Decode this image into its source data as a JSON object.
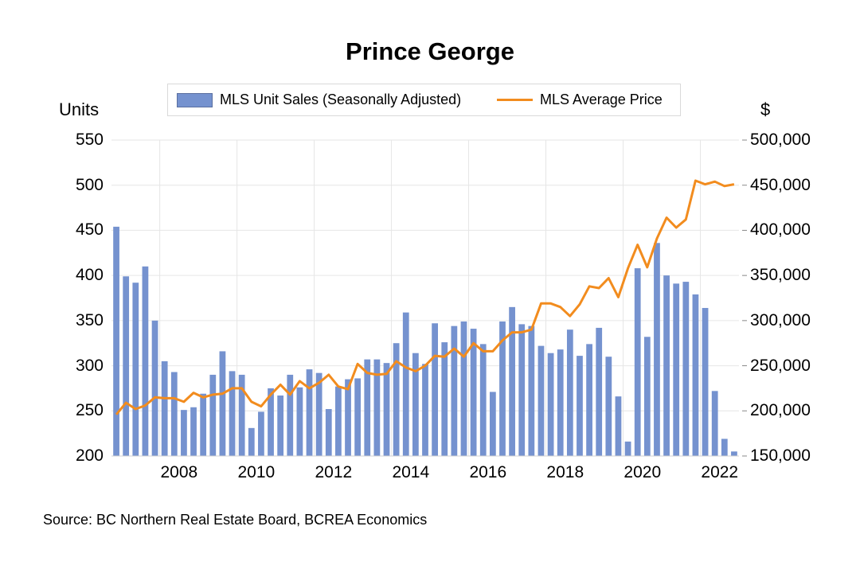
{
  "title": "Prince George",
  "legend": {
    "bars_label": "MLS Unit Sales (Seasonally Adjusted)",
    "line_label": "MLS Average Price"
  },
  "y_left_unit": "Units",
  "y_right_unit": "$",
  "source": "Source:  BC Northern Real Estate Board, BCREA Economics",
  "colors": {
    "bars": "#7592cf",
    "line": "#f28c1e",
    "grid": "#e6e6e6"
  },
  "chart_data": {
    "type": "bar",
    "frequency": "quarterly",
    "x_start": "2006 Q4",
    "title": "Prince George",
    "left_axis": {
      "label": "Units",
      "range": [
        200,
        550
      ],
      "ticks": [
        "550",
        "500",
        "450",
        "400",
        "350",
        "300",
        "250",
        "200"
      ]
    },
    "right_axis": {
      "label": "$",
      "range": [
        150000,
        500000
      ],
      "ticks": [
        "500,000",
        "450,000",
        "400,000",
        "350,000",
        "300,000",
        "250,000",
        "200,000",
        "150,000"
      ]
    },
    "x_tick_labels": [
      {
        "label": "2008",
        "year": 2008
      },
      {
        "label": "2010",
        "year": 2010
      },
      {
        "label": "2012",
        "year": 2012
      },
      {
        "label": "2014",
        "year": 2014
      },
      {
        "label": "2016",
        "year": 2016
      },
      {
        "label": "2018",
        "year": 2018
      },
      {
        "label": "2020",
        "year": 2020
      },
      {
        "label": "2022",
        "year": 2022
      }
    ],
    "grid": true,
    "legend_position": "top",
    "series": [
      {
        "name": "MLS Unit Sales (Seasonally Adjusted)",
        "type": "bar",
        "axis": "left",
        "values": [
          454,
          399,
          392,
          410,
          350,
          305,
          293,
          251,
          254,
          269,
          290,
          316,
          294,
          290,
          231,
          249,
          275,
          267,
          290,
          276,
          296,
          292,
          252,
          277,
          285,
          286,
          307,
          307,
          303,
          325,
          359,
          314,
          302,
          347,
          326,
          344,
          349,
          341,
          324,
          271,
          349,
          365,
          346,
          344,
          322,
          314,
          318,
          340,
          311,
          324,
          342,
          310,
          266,
          216,
          408,
          332,
          436,
          400,
          391,
          393,
          379,
          364,
          272,
          219,
          205
        ]
      },
      {
        "name": "MLS Average Price",
        "type": "line",
        "axis": "right",
        "values": [
          196000,
          209000,
          202000,
          206000,
          215000,
          214000,
          214000,
          210000,
          220000,
          215000,
          218000,
          219000,
          225000,
          225000,
          210000,
          205000,
          218000,
          229000,
          218000,
          233000,
          225000,
          231000,
          240000,
          227000,
          224000,
          252000,
          242000,
          240000,
          241000,
          255000,
          248000,
          244000,
          250000,
          261000,
          260000,
          269000,
          260000,
          275000,
          266000,
          266000,
          278000,
          287000,
          287000,
          290000,
          319000,
          319000,
          315000,
          305000,
          318000,
          338000,
          336000,
          347000,
          326000,
          358000,
          384000,
          359000,
          391000,
          414000,
          403000,
          412000,
          455000,
          451000,
          454000,
          449000,
          451000
        ]
      }
    ]
  }
}
